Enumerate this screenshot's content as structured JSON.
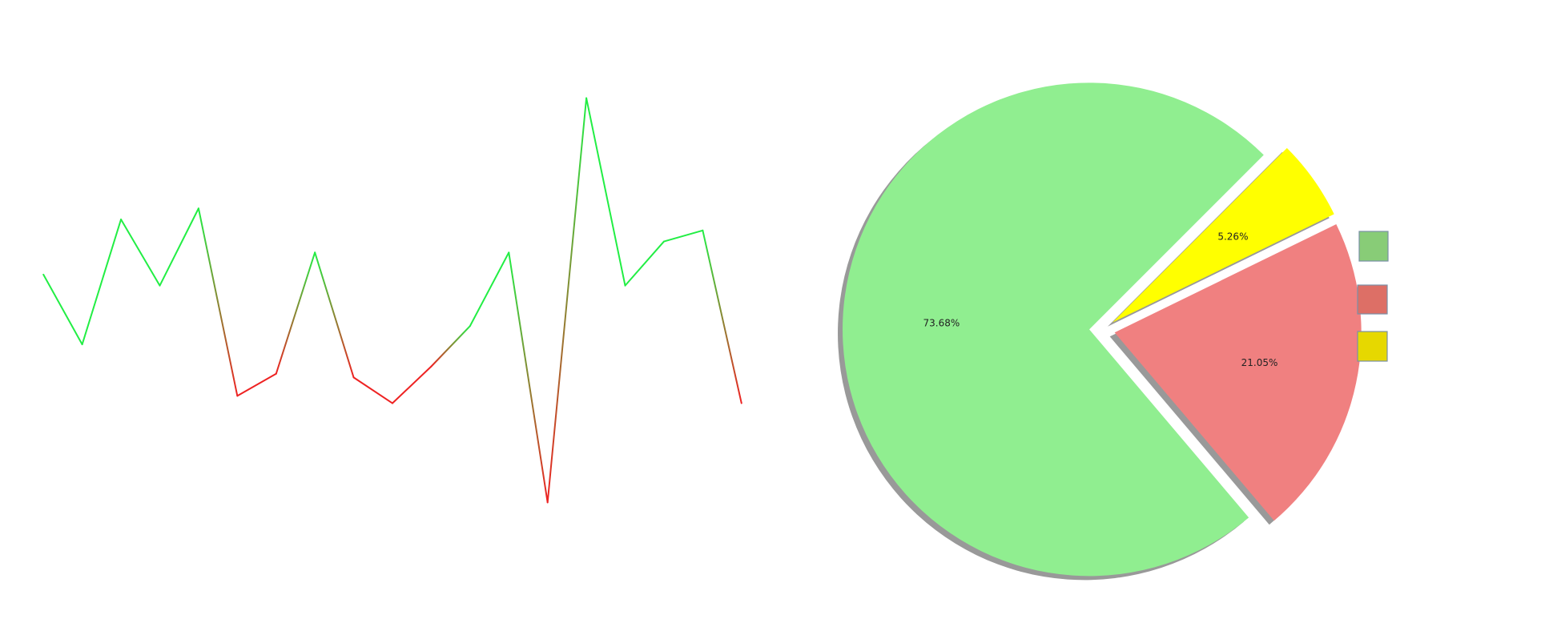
{
  "chart_data": [
    {
      "type": "line",
      "title": "",
      "xlabel": "",
      "ylabel": "",
      "x": [
        0,
        1,
        2,
        3,
        4,
        5,
        6,
        7,
        8,
        9,
        10,
        11,
        12,
        13,
        14,
        15,
        16,
        17,
        18
      ],
      "series": [
        {
          "values": [
            0.2,
            -0.75,
            0.95,
            0.05,
            1.1,
            -1.45,
            -1.15,
            0.5,
            -1.2,
            -1.55,
            -1.05,
            -0.5,
            0.5,
            -2.9,
            2.6,
            0.05,
            0.65,
            0.8,
            -1.55
          ],
          "color_high": "#22ee44",
          "color_low": "#ee2222"
        }
      ],
      "ylim": [
        -3.2,
        2.9
      ],
      "xlim": [
        -0.5,
        18.5
      ],
      "grid": false,
      "axes_visible": false
    },
    {
      "type": "pie",
      "labels": [
        "73.68%",
        "21.05%",
        "5.26%"
      ],
      "values": [
        73.68,
        21.05,
        5.26
      ],
      "colors": [
        "#90ee90",
        "#f08080",
        "#ffff00"
      ],
      "exploded": [
        true,
        true,
        true
      ],
      "shadow": true,
      "start_angle_deg": 45,
      "legend_position": "right",
      "legend_colors": [
        "#88cc77",
        "#dd6f66",
        "#e6d800"
      ]
    }
  ]
}
